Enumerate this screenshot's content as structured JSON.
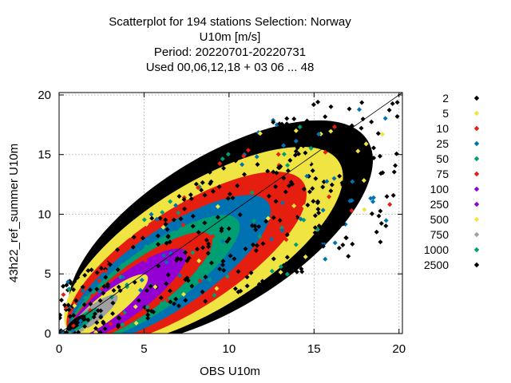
{
  "colors": {
    "2": "#000000",
    "5": "#f0e442",
    "10": "#e51e10",
    "25": "#0072b2",
    "50": "#009e73",
    "75": "#e51e10",
    "100": "#9400d3",
    "250": "#9400d3",
    "500": "#f0e442",
    "750": "#a0a0a0",
    "1000": "#009e73",
    "2500": "#000000"
  },
  "chart_data": {
    "type": "scatter",
    "title_lines": [
      "Scatterplot for  194 stations Selection: Norway",
      "U10m [m/s]",
      "Period: 20220701-20220731",
      "Used  00,06,12,18  + 03 06 ... 48"
    ],
    "xlabel": "OBS U10m",
    "ylabel": "43h22_ref_summer U10m",
    "xlim": [
      0,
      20.2
    ],
    "ylim": [
      0,
      20.2
    ],
    "x_ticks": [
      0,
      5,
      10,
      15,
      20
    ],
    "y_ticks": [
      0,
      5,
      10,
      15,
      20
    ],
    "grid": true,
    "diagonal": true,
    "legend_position": "right",
    "series": [
      {
        "name": "2"
      },
      {
        "name": "5"
      },
      {
        "name": "10"
      },
      {
        "name": "25"
      },
      {
        "name": "50"
      },
      {
        "name": "75"
      },
      {
        "name": "100"
      },
      {
        "name": "250"
      },
      {
        "name": "500"
      },
      {
        "name": "750"
      },
      {
        "name": "1000"
      },
      {
        "name": "2500"
      }
    ],
    "density_bands": [
      {
        "level": "2",
        "cx": 9.5,
        "cy": 8.5,
        "rx": 10.2,
        "ry": 6.3,
        "angle": 32
      },
      {
        "level": "5",
        "cx": 8.5,
        "cy": 7.3,
        "rx": 9.4,
        "ry": 5.2,
        "angle": 32
      },
      {
        "level": "10",
        "cx": 7.5,
        "cy": 6.3,
        "rx": 8.2,
        "ry": 4.2,
        "angle": 33
      },
      {
        "level": "25",
        "cx": 6.5,
        "cy": 5.4,
        "rx": 7.0,
        "ry": 3.3,
        "angle": 34
      },
      {
        "level": "50",
        "cx": 5.6,
        "cy": 4.6,
        "rx": 6.0,
        "ry": 2.6,
        "angle": 35
      },
      {
        "level": "75",
        "cx": 4.8,
        "cy": 3.9,
        "rx": 5.1,
        "ry": 2.1,
        "angle": 36
      },
      {
        "level": "100",
        "cx": 4.0,
        "cy": 3.2,
        "rx": 4.3,
        "ry": 1.7,
        "angle": 37
      },
      {
        "level": "500",
        "cx": 2.9,
        "cy": 2.3,
        "rx": 2.9,
        "ry": 1.05,
        "angle": 38
      },
      {
        "level": "750",
        "cx": 2.0,
        "cy": 1.6,
        "rx": 1.8,
        "ry": 0.7,
        "angle": 38
      },
      {
        "level": "1000",
        "cx": 1.4,
        "cy": 1.1,
        "rx": 1.1,
        "ry": 0.45,
        "angle": 38
      },
      {
        "level": "2500",
        "cx": 1.0,
        "cy": 0.9,
        "rx": 0.7,
        "ry": 0.35,
        "angle": 38
      }
    ]
  }
}
